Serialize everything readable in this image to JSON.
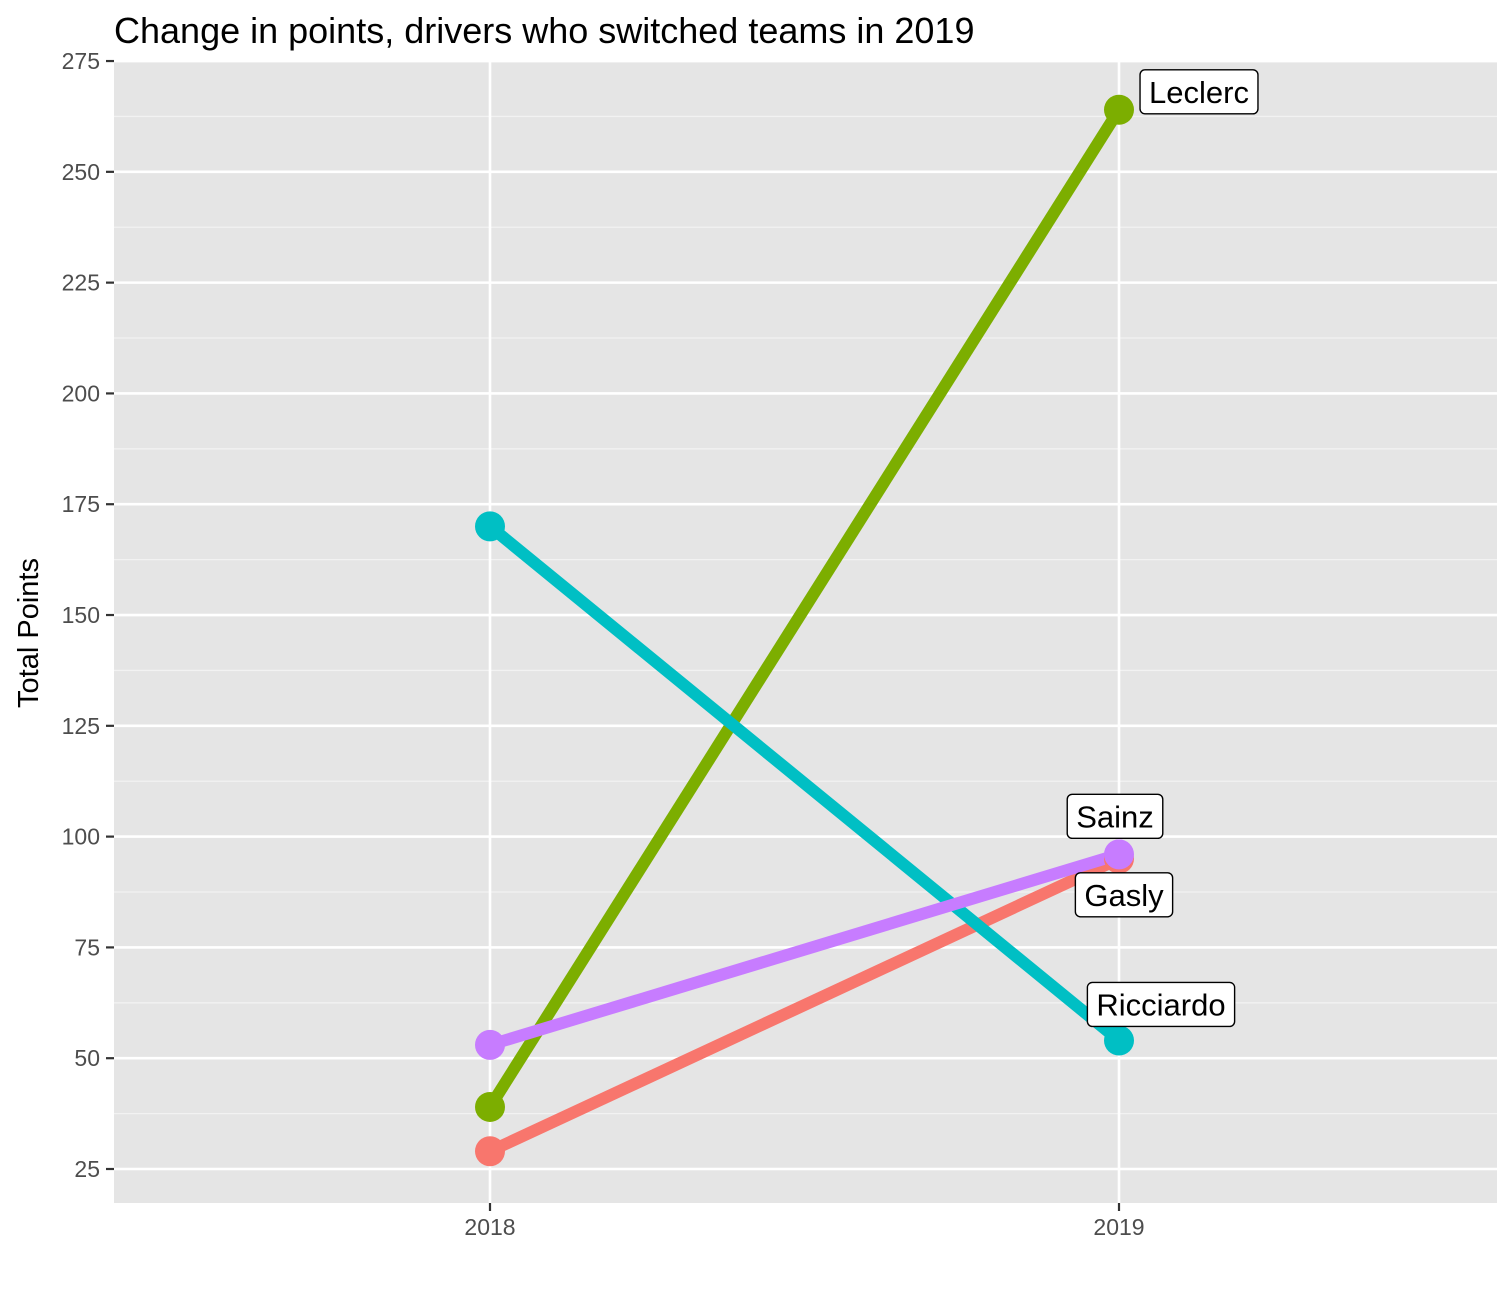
{
  "chart_data": {
    "type": "line",
    "title": "Change in points, drivers who switched teams in 2019",
    "xlabel": "",
    "ylabel": "Total Points",
    "x": [
      "2018",
      "2019"
    ],
    "ylim": [
      17,
      275
    ],
    "yticks": [
      25,
      50,
      75,
      100,
      125,
      150,
      175,
      200,
      225,
      250,
      275
    ],
    "grid": true,
    "legend": "none",
    "series": [
      {
        "name": "Gasly",
        "values": [
          29,
          95
        ],
        "color": "#F8766D"
      },
      {
        "name": "Leclerc",
        "values": [
          39,
          264
        ],
        "color": "#7CAE00"
      },
      {
        "name": "Ricciardo",
        "values": [
          170,
          54
        ],
        "color": "#00BFC4"
      },
      {
        "name": "Sainz",
        "values": [
          53,
          96
        ],
        "color": "#C77CFF"
      }
    ]
  }
}
